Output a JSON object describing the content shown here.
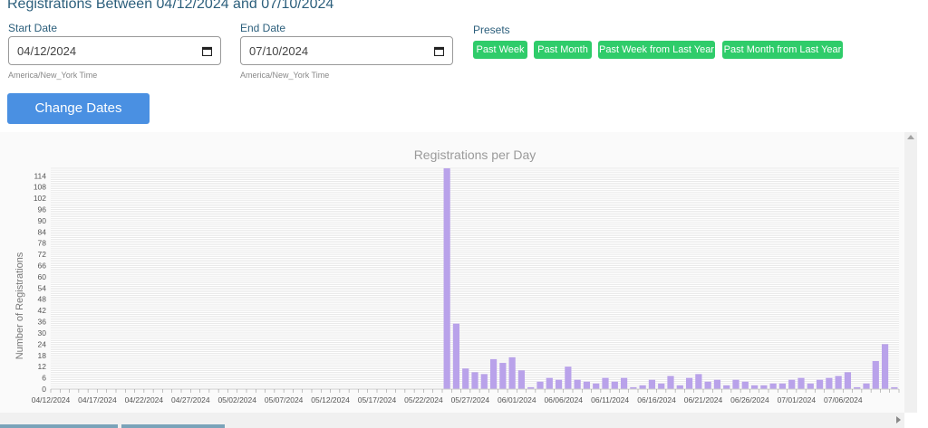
{
  "page": {
    "title": "Registrations Between 04/12/2024 and 07/10/2024"
  },
  "start_date": {
    "label": "Start Date",
    "value": "04/12/2024",
    "timezone": "America/New_York Time"
  },
  "end_date": {
    "label": "End Date",
    "value": "07/10/2024",
    "timezone": "America/New_York Time"
  },
  "presets": {
    "label": "Presets",
    "items": [
      "Past Week",
      "Past Month",
      "Past Week from Last Year",
      "Past Month from Last Year"
    ]
  },
  "change_dates_label": "Change Dates",
  "colors": {
    "accent": "#4a90e2",
    "preset": "#2fcc6a",
    "bar": "#b9a2ea",
    "title": "#2c5f7c"
  },
  "chart_data": {
    "type": "bar",
    "title": "Registrations per Day",
    "xlabel": "",
    "ylabel": "Number of Registrations",
    "ylim": [
      0,
      118
    ],
    "yticks": [
      0,
      6,
      12,
      18,
      24,
      30,
      36,
      42,
      48,
      54,
      60,
      66,
      72,
      78,
      84,
      90,
      96,
      102,
      108,
      114
    ],
    "xtick_labels": [
      "04/12/2024",
      "04/17/2024",
      "04/22/2024",
      "04/27/2024",
      "05/02/2024",
      "05/07/2024",
      "05/12/2024",
      "05/17/2024",
      "05/22/2024",
      "05/27/2024",
      "06/01/2024",
      "06/06/2024",
      "06/11/2024",
      "06/16/2024",
      "06/21/2024",
      "06/26/2024",
      "07/01/2024",
      "07/06/2024"
    ],
    "x_start": "04/12/2024",
    "values": [
      0,
      0,
      0,
      0,
      0,
      0,
      0,
      0,
      0,
      0,
      0,
      0,
      0,
      0,
      0,
      0,
      0,
      0,
      0,
      0,
      0,
      0,
      0,
      0,
      0,
      0,
      0,
      0,
      0,
      0,
      0,
      0,
      0,
      0,
      0,
      0,
      0,
      0,
      0,
      0,
      0,
      0,
      118,
      35,
      11,
      9,
      8,
      16,
      14,
      17,
      10,
      1,
      4,
      6,
      5,
      12,
      5,
      4,
      3,
      6,
      4,
      6,
      1,
      2,
      5,
      3,
      7,
      2,
      6,
      8,
      4,
      5,
      2,
      5,
      4,
      2,
      2,
      3,
      3,
      5,
      6,
      3,
      5,
      6,
      7,
      9,
      1,
      3,
      15,
      24,
      1
    ],
    "grid": true,
    "legend": "none"
  }
}
